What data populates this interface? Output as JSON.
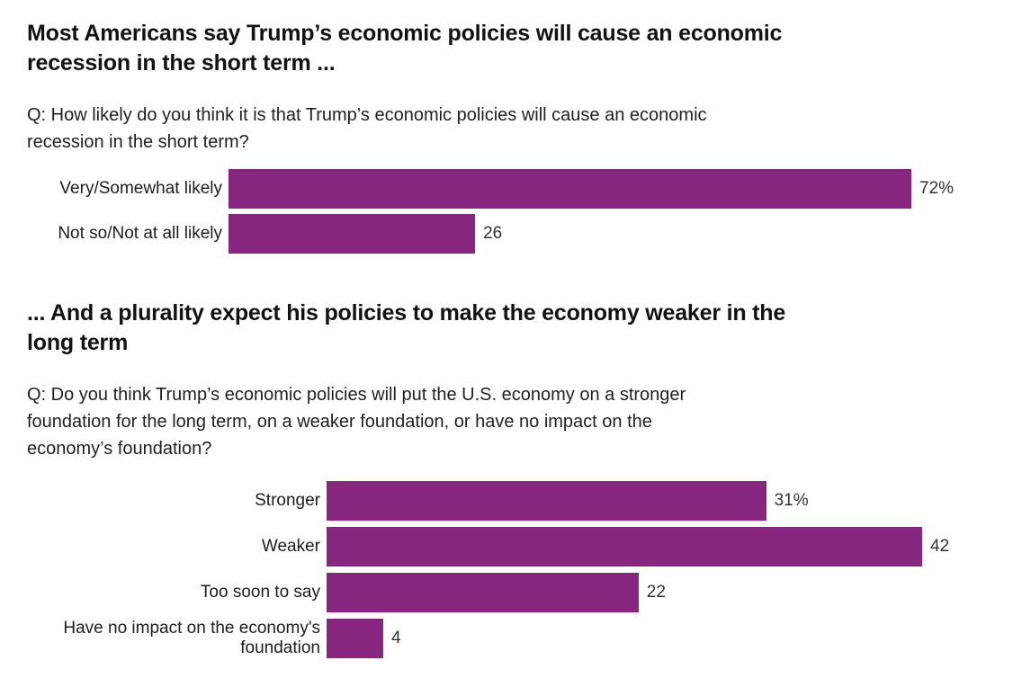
{
  "page": {
    "background": "#ffffff",
    "accent_color": "#86267e"
  },
  "sections": [
    {
      "headline": "Most Americans say Trump’s economic policies will cause an economic\nrecession in the short term ...",
      "question": "Q: How likely do you think it is that Trump’s economic policies will cause an economic\nrecession in the short term?"
    },
    {
      "headline": "... And a plurality expect his policies to make the economy weaker in the\nlong term",
      "question": "Q: Do you think Trump’s economic policies will put the U.S. economy on a stronger\nfoundation for the long term, on a weaker foundation, or have no impact on the\neconomy’s foundation?"
    }
  ],
  "chart_data": [
    {
      "type": "bar",
      "orientation": "horizontal",
      "title": "Most Americans say Trump’s economic policies will cause an economic recession in the short term ...",
      "subtitle": "Q: How likely do you think it is that Trump’s economic policies will cause an economic recession in the short term?",
      "categories": [
        "Very/Somewhat likely",
        "Not so/Not at all likely"
      ],
      "values": [
        72,
        26
      ],
      "value_labels": [
        "72%",
        "26"
      ],
      "bar_color": "#86267e",
      "xlabel": "",
      "ylabel": "",
      "xlim": [
        0,
        72
      ],
      "grid": false,
      "legend": "none",
      "value_label_position": "end-of-bar"
    },
    {
      "type": "bar",
      "orientation": "horizontal",
      "title": "... And a plurality expect his policies to make the economy weaker in the long term",
      "subtitle": "Q: Do you think Trump’s economic policies will put the U.S. economy on a stronger foundation for the long term, on a weaker foundation, or have no impact on the economy’s foundation?",
      "categories": [
        "Stronger",
        "Weaker",
        "Too soon to say",
        "Have no impact on the economy's\nfoundation"
      ],
      "values": [
        31,
        42,
        22,
        4
      ],
      "value_labels": [
        "31%",
        "42",
        "22",
        "4"
      ],
      "bar_color": "#86267e",
      "xlabel": "",
      "ylabel": "",
      "xlim": [
        0,
        42
      ],
      "grid": false,
      "legend": "none",
      "value_label_position": "end-of-bar"
    }
  ]
}
